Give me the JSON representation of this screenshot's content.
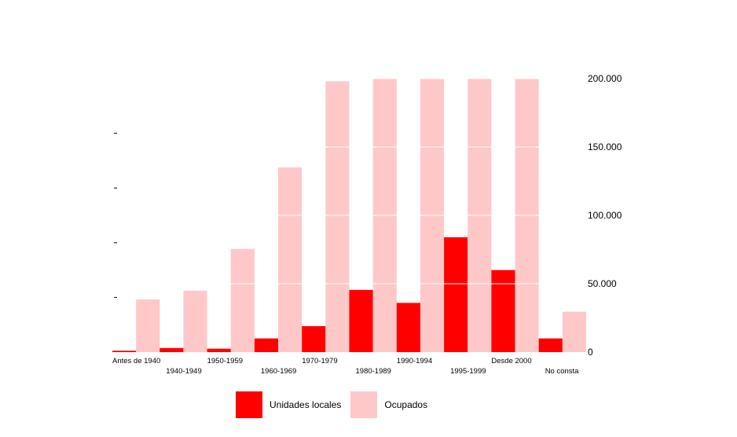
{
  "chart_data": {
    "type": "bar",
    "title": "",
    "xlabel": "",
    "ylabel": "",
    "categories": [
      "Antes de 1940",
      "1940-1949",
      "1950-1959",
      "1960-1969",
      "1970-1979",
      "1980-1989",
      "1990-1994",
      "1995-1999",
      "Desde 2000",
      "No consta"
    ],
    "series": [
      {
        "name": "Unidades locales",
        "color": "#ff0000",
        "values": [
          1000,
          3000,
          2500,
          10000,
          19000,
          45500,
          36000,
          84000,
          60000,
          10000
        ]
      },
      {
        "name": "Ocupados",
        "color": "#ffc8c8",
        "values": [
          38500,
          45000,
          75500,
          135000,
          198000,
          200000,
          200000,
          200000,
          200000,
          29500
        ]
      }
    ],
    "ylim": [
      0,
      200000
    ],
    "yticks": [
      0,
      50000,
      100000,
      150000,
      200000
    ],
    "ytick_labels": [
      "0",
      "50.000",
      "100.000",
      "150.000",
      "200.000"
    ],
    "grid": true,
    "legend_position": "bottom"
  }
}
